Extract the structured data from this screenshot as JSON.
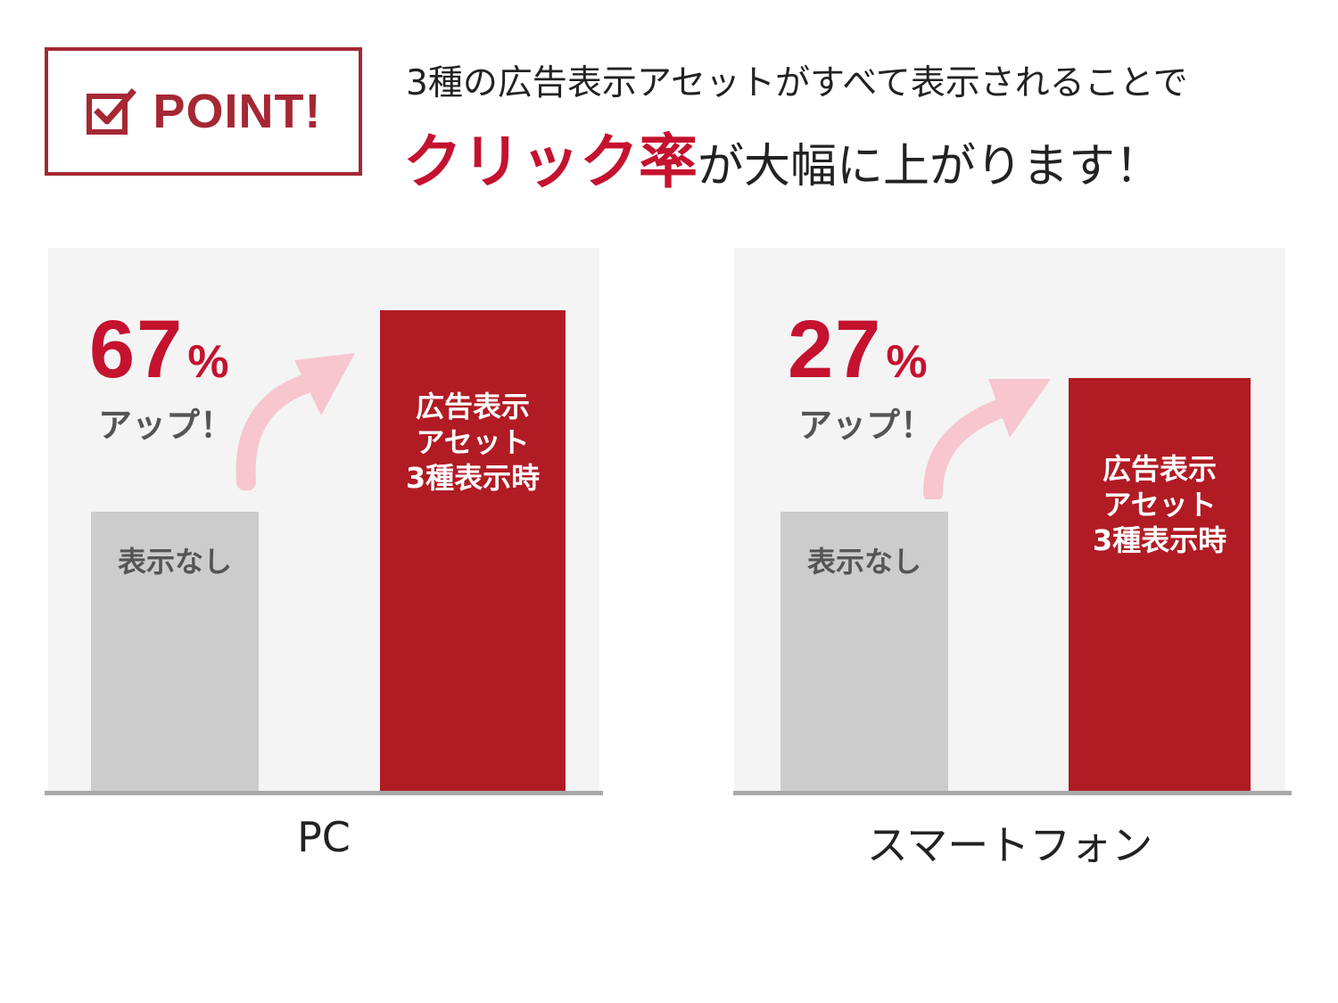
{
  "header": {
    "point_label": "POINT!",
    "line1": "3種の広告表示アセットがすべて表示されることで",
    "line2_emphasis": "クリック率",
    "line2_rest": "が大幅に上がります！"
  },
  "colors": {
    "accent": "#c4122f",
    "box_border": "#a52834",
    "bar_red": "#b11b24",
    "bar_gray": "#cccccc",
    "arrow_pink": "#f7c6cf"
  },
  "chart_data": [
    {
      "type": "bar",
      "category_label": "PC",
      "categories": [
        "表示なし",
        "広告表示\nアセット\n3種表示時"
      ],
      "values": [
        1.0,
        1.67
      ],
      "increase_percent": 67,
      "increase_unit": "%",
      "increase_label": "アップ！",
      "legend": "none",
      "grid": false
    },
    {
      "type": "bar",
      "category_label": "スマートフォン",
      "categories": [
        "表示なし",
        "広告表示\nアセット\n3種表示時"
      ],
      "values": [
        1.0,
        1.27
      ],
      "increase_percent": 27,
      "increase_unit": "%",
      "increase_label": "アップ！",
      "legend": "none",
      "grid": false
    }
  ]
}
